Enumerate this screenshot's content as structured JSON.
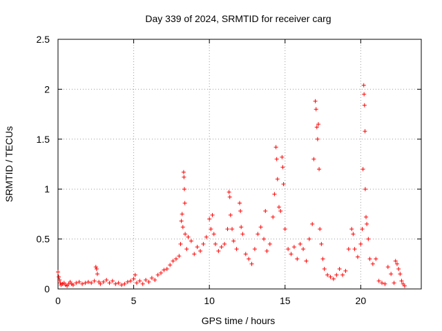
{
  "chart_data": {
    "type": "scatter",
    "title": "Day 339 of 2024, SRMTID for receiver carg",
    "xlabel": "GPS time / hours",
    "ylabel": "SRMTID / TECUs",
    "xlim": [
      0,
      24
    ],
    "ylim": [
      0,
      2.5
    ],
    "grid": true,
    "marker": "plus",
    "x_ticks": [
      0,
      5,
      10,
      15,
      20
    ],
    "x_tick_labels": [
      "0",
      "5",
      "10",
      "15",
      "20"
    ],
    "y_ticks": [
      0,
      0.5,
      1,
      1.5,
      2,
      2.5
    ],
    "y_tick_labels": [
      "0",
      "0.5",
      "1",
      "1.5",
      "2",
      "2.5"
    ],
    "series": [
      {
        "name": "SRMTID",
        "color": "#ff0000",
        "points": [
          [
            0.0,
            0.17
          ],
          [
            0.05,
            0.12
          ],
          [
            0.1,
            0.09
          ],
          [
            0.15,
            0.06
          ],
          [
            0.2,
            0.04
          ],
          [
            0.3,
            0.05
          ],
          [
            0.4,
            0.06
          ],
          [
            0.5,
            0.04
          ],
          [
            0.6,
            0.03
          ],
          [
            0.7,
            0.05
          ],
          [
            0.8,
            0.07
          ],
          [
            0.9,
            0.05
          ],
          [
            1.0,
            0.04
          ],
          [
            1.2,
            0.06
          ],
          [
            1.4,
            0.07
          ],
          [
            1.6,
            0.05
          ],
          [
            1.8,
            0.06
          ],
          [
            2.0,
            0.07
          ],
          [
            2.2,
            0.06
          ],
          [
            2.4,
            0.08
          ],
          [
            2.5,
            0.22
          ],
          [
            2.55,
            0.2
          ],
          [
            2.6,
            0.15
          ],
          [
            2.7,
            0.07
          ],
          [
            2.8,
            0.05
          ],
          [
            3.0,
            0.07
          ],
          [
            3.2,
            0.09
          ],
          [
            3.4,
            0.06
          ],
          [
            3.6,
            0.08
          ],
          [
            3.8,
            0.05
          ],
          [
            4.0,
            0.06
          ],
          [
            4.2,
            0.04
          ],
          [
            4.4,
            0.05
          ],
          [
            4.6,
            0.07
          ],
          [
            4.8,
            0.08
          ],
          [
            5.0,
            0.1
          ],
          [
            5.1,
            0.14
          ],
          [
            5.2,
            0.06
          ],
          [
            5.4,
            0.08
          ],
          [
            5.6,
            0.05
          ],
          [
            5.8,
            0.09
          ],
          [
            6.0,
            0.07
          ],
          [
            6.2,
            0.11
          ],
          [
            6.4,
            0.09
          ],
          [
            6.6,
            0.14
          ],
          [
            6.8,
            0.16
          ],
          [
            7.0,
            0.19
          ],
          [
            7.2,
            0.2
          ],
          [
            7.4,
            0.24
          ],
          [
            7.6,
            0.28
          ],
          [
            7.8,
            0.3
          ],
          [
            8.0,
            0.33
          ],
          [
            8.1,
            0.45
          ],
          [
            8.15,
            0.68
          ],
          [
            8.2,
            0.75
          ],
          [
            8.25,
            0.62
          ],
          [
            8.3,
            1.17
          ],
          [
            8.32,
            1.12
          ],
          [
            8.35,
            1.0
          ],
          [
            8.38,
            0.86
          ],
          [
            8.4,
            0.55
          ],
          [
            8.5,
            0.4
          ],
          [
            8.6,
            0.52
          ],
          [
            8.8,
            0.48
          ],
          [
            9.0,
            0.35
          ],
          [
            9.2,
            0.42
          ],
          [
            9.4,
            0.38
          ],
          [
            9.6,
            0.45
          ],
          [
            9.8,
            0.52
          ],
          [
            10.0,
            0.7
          ],
          [
            10.1,
            0.6
          ],
          [
            10.2,
            0.74
          ],
          [
            10.3,
            0.55
          ],
          [
            10.4,
            0.45
          ],
          [
            10.6,
            0.38
          ],
          [
            10.8,
            0.42
          ],
          [
            11.0,
            0.45
          ],
          [
            11.2,
            0.6
          ],
          [
            11.3,
            0.97
          ],
          [
            11.35,
            0.92
          ],
          [
            11.4,
            0.74
          ],
          [
            11.5,
            0.6
          ],
          [
            11.6,
            0.48
          ],
          [
            11.8,
            0.4
          ],
          [
            12.0,
            0.86
          ],
          [
            12.05,
            0.78
          ],
          [
            12.1,
            0.62
          ],
          [
            12.2,
            0.55
          ],
          [
            12.4,
            0.35
          ],
          [
            12.6,
            0.3
          ],
          [
            12.8,
            0.25
          ],
          [
            13.0,
            0.4
          ],
          [
            13.2,
            0.55
          ],
          [
            13.4,
            0.62
          ],
          [
            13.6,
            0.5
          ],
          [
            13.7,
            0.78
          ],
          [
            13.8,
            0.38
          ],
          [
            14.0,
            0.45
          ],
          [
            14.2,
            0.72
          ],
          [
            14.3,
            0.95
          ],
          [
            14.4,
            1.42
          ],
          [
            14.45,
            1.3
          ],
          [
            14.5,
            1.1
          ],
          [
            14.6,
            0.82
          ],
          [
            14.7,
            0.78
          ],
          [
            14.8,
            1.32
          ],
          [
            14.85,
            1.22
          ],
          [
            14.9,
            1.05
          ],
          [
            15.0,
            0.6
          ],
          [
            15.2,
            0.4
          ],
          [
            15.4,
            0.35
          ],
          [
            15.6,
            0.42
          ],
          [
            15.8,
            0.3
          ],
          [
            16.0,
            0.45
          ],
          [
            16.2,
            0.4
          ],
          [
            16.4,
            0.28
          ],
          [
            16.6,
            0.5
          ],
          [
            16.8,
            0.65
          ],
          [
            16.9,
            1.3
          ],
          [
            17.0,
            1.88
          ],
          [
            17.05,
            1.8
          ],
          [
            17.1,
            1.62
          ],
          [
            17.15,
            1.5
          ],
          [
            17.2,
            1.65
          ],
          [
            17.25,
            1.2
          ],
          [
            17.3,
            0.6
          ],
          [
            17.4,
            0.45
          ],
          [
            17.5,
            0.3
          ],
          [
            17.6,
            0.2
          ],
          [
            17.8,
            0.14
          ],
          [
            18.0,
            0.12
          ],
          [
            18.2,
            0.1
          ],
          [
            18.4,
            0.14
          ],
          [
            18.6,
            0.2
          ],
          [
            18.8,
            0.14
          ],
          [
            19.0,
            0.18
          ],
          [
            19.2,
            0.4
          ],
          [
            19.4,
            0.6
          ],
          [
            19.5,
            0.55
          ],
          [
            19.6,
            0.4
          ],
          [
            19.8,
            0.32
          ],
          [
            20.0,
            0.45
          ],
          [
            20.1,
            0.6
          ],
          [
            20.15,
            1.2
          ],
          [
            20.2,
            2.04
          ],
          [
            20.22,
            1.95
          ],
          [
            20.25,
            1.84
          ],
          [
            20.28,
            1.58
          ],
          [
            20.3,
            1.0
          ],
          [
            20.35,
            0.72
          ],
          [
            20.4,
            0.65
          ],
          [
            20.5,
            0.5
          ],
          [
            20.6,
            0.3
          ],
          [
            20.8,
            0.25
          ],
          [
            21.0,
            0.3
          ],
          [
            21.2,
            0.08
          ],
          [
            21.4,
            0.06
          ],
          [
            21.6,
            0.05
          ],
          [
            21.8,
            0.22
          ],
          [
            22.0,
            0.15
          ],
          [
            22.2,
            0.06
          ],
          [
            22.3,
            0.28
          ],
          [
            22.4,
            0.25
          ],
          [
            22.5,
            0.2
          ],
          [
            22.6,
            0.15
          ],
          [
            22.7,
            0.08
          ],
          [
            22.8,
            0.05
          ],
          [
            22.9,
            0.03
          ]
        ]
      }
    ]
  }
}
